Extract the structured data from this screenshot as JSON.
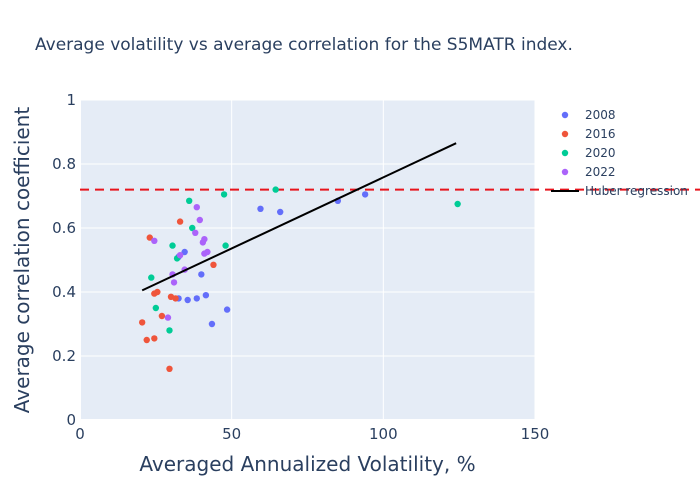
{
  "chart_data": {
    "type": "scatter",
    "title": "Average volatility vs average correlation for the S5MATR index.",
    "xlabel": "Averaged Annualized Volatility, %",
    "ylabel": "Average correlation coefficient",
    "xlim": [
      0,
      150
    ],
    "ylim": [
      0,
      1
    ],
    "x_ticks": [
      "0",
      "50",
      "100",
      "150"
    ],
    "y_ticks": [
      "0",
      "0.2",
      "0.4",
      "0.6",
      "0.8",
      "1"
    ],
    "grid": true,
    "legend_position": "right",
    "series": [
      {
        "name": "2008",
        "color": "#636efa",
        "points": [
          [
            32.5,
            0.38
          ],
          [
            35.5,
            0.375
          ],
          [
            38.5,
            0.38
          ],
          [
            41.5,
            0.39
          ],
          [
            43.5,
            0.3
          ],
          [
            48.5,
            0.345
          ],
          [
            40,
            0.455
          ],
          [
            34.5,
            0.525
          ],
          [
            32.5,
            0.51
          ],
          [
            59.5,
            0.66
          ],
          [
            66,
            0.65
          ],
          [
            85,
            0.685
          ],
          [
            94,
            0.705
          ]
        ]
      },
      {
        "name": "2016",
        "color": "#ef553b",
        "points": [
          [
            20.5,
            0.305
          ],
          [
            22,
            0.25
          ],
          [
            24.5,
            0.255
          ],
          [
            24.5,
            0.395
          ],
          [
            25.5,
            0.4
          ],
          [
            27,
            0.325
          ],
          [
            29.5,
            0.16
          ],
          [
            30,
            0.385
          ],
          [
            31.5,
            0.38
          ],
          [
            33,
            0.62
          ],
          [
            23,
            0.57
          ],
          [
            44,
            0.485
          ]
        ]
      },
      {
        "name": "2020",
        "color": "#00cc96",
        "points": [
          [
            23.5,
            0.445
          ],
          [
            25,
            0.35
          ],
          [
            29.5,
            0.28
          ],
          [
            30.5,
            0.545
          ],
          [
            32,
            0.505
          ],
          [
            36,
            0.685
          ],
          [
            37,
            0.6
          ],
          [
            47.5,
            0.705
          ],
          [
            48,
            0.545
          ],
          [
            64.5,
            0.72
          ],
          [
            124.5,
            0.675
          ]
        ]
      },
      {
        "name": "2022",
        "color": "#ab63fa",
        "points": [
          [
            24.5,
            0.56
          ],
          [
            29,
            0.32
          ],
          [
            30.5,
            0.455
          ],
          [
            31,
            0.43
          ],
          [
            33,
            0.515
          ],
          [
            34.5,
            0.47
          ],
          [
            38,
            0.585
          ],
          [
            38.5,
            0.665
          ],
          [
            39.5,
            0.625
          ],
          [
            40.5,
            0.555
          ],
          [
            41,
            0.565
          ],
          [
            41,
            0.52
          ],
          [
            42,
            0.525
          ]
        ]
      }
    ],
    "regression": {
      "name": "Huber regression",
      "color": "#000000",
      "points": [
        [
          20.5,
          0.405
        ],
        [
          124,
          0.865
        ]
      ]
    },
    "reference_line": {
      "y": 0.72,
      "color": "#e8141c",
      "style": "dashed"
    }
  }
}
